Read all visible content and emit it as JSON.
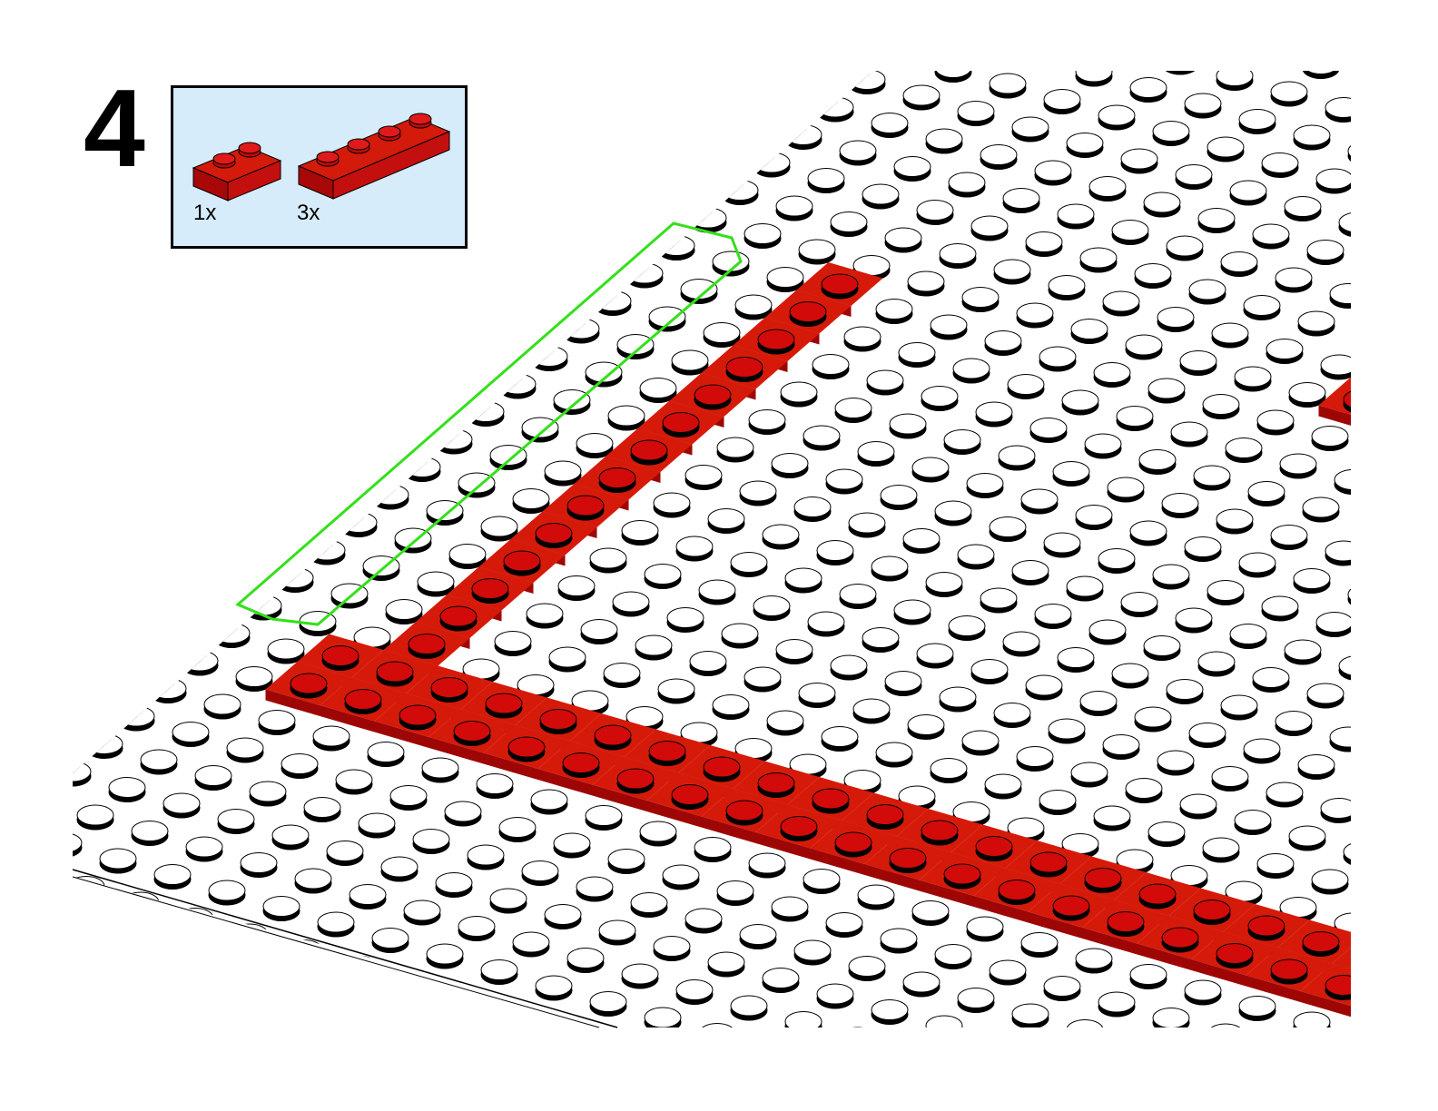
{
  "step": {
    "number": "4"
  },
  "parts_list": {
    "items": [
      {
        "name": "plate-1x2",
        "quantity": "1x",
        "color": "#cc0a0a"
      },
      {
        "name": "plate-1x4",
        "quantity": "3x",
        "color": "#cc0a0a"
      }
    ],
    "background": "#d6ecfb"
  },
  "scene": {
    "baseplate_color": "#ffffff",
    "brick_color": "#c80a0a",
    "highlight_color": "#33e01a"
  }
}
